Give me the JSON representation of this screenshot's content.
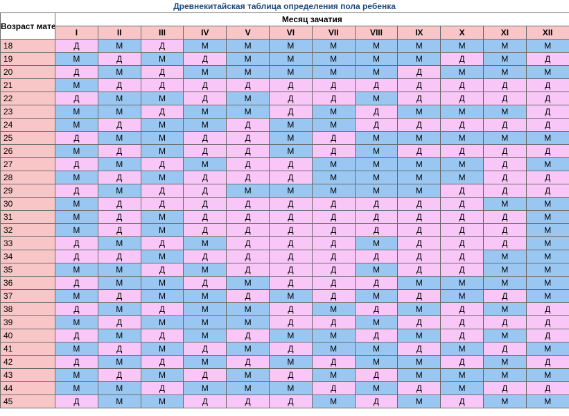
{
  "title": "Древнекитайская таблица определения пола ребенка",
  "age_header": "Возраст матери",
  "month_header": "Месяц зачатия",
  "months": [
    "I",
    "II",
    "III",
    "IV",
    "V",
    "VI",
    "VII",
    "VIII",
    "IX",
    "X",
    "XI",
    "XII"
  ],
  "rows": [
    {
      "age": "18",
      "cells": [
        "Д",
        "М",
        "Д",
        "М",
        "М",
        "М",
        "М",
        "М",
        "М",
        "М",
        "М",
        "М"
      ]
    },
    {
      "age": "19",
      "cells": [
        "М",
        "Д",
        "М",
        "Д",
        "М",
        "М",
        "М",
        "М",
        "М",
        "Д",
        "М",
        "Д"
      ]
    },
    {
      "age": "20",
      "cells": [
        "Д",
        "М",
        "Д",
        "М",
        "М",
        "М",
        "М",
        "М",
        "Д",
        "М",
        "М",
        "М"
      ]
    },
    {
      "age": "21",
      "cells": [
        "М",
        "Д",
        "Д",
        "Д",
        "Д",
        "Д",
        "Д",
        "Д",
        "Д",
        "Д",
        "Д",
        "Д"
      ]
    },
    {
      "age": "22",
      "cells": [
        "Д",
        "М",
        "М",
        "Д",
        "М",
        "Д",
        "Д",
        "М",
        "Д",
        "Д",
        "Д",
        "Д"
      ]
    },
    {
      "age": "23",
      "cells": [
        "М",
        "М",
        "Д",
        "М",
        "М",
        "Д",
        "М",
        "Д",
        "М",
        "М",
        "М",
        "Д"
      ]
    },
    {
      "age": "24",
      "cells": [
        "М",
        "Д",
        "М",
        "М",
        "Д",
        "М",
        "М",
        "Д",
        "Д",
        "Д",
        "Д",
        "Д"
      ]
    },
    {
      "age": "25",
      "cells": [
        "Д",
        "М",
        "М",
        "Д",
        "Д",
        "М",
        "Д",
        "М",
        "М",
        "М",
        "М",
        "М"
      ]
    },
    {
      "age": "26",
      "cells": [
        "М",
        "Д",
        "М",
        "Д",
        "Д",
        "М",
        "Д",
        "М",
        "Д",
        "Д",
        "Д",
        "Д"
      ]
    },
    {
      "age": "27",
      "cells": [
        "Д",
        "М",
        "Д",
        "М",
        "Д",
        "Д",
        "М",
        "М",
        "М",
        "М",
        "Д",
        "М"
      ]
    },
    {
      "age": "28",
      "cells": [
        "М",
        "Д",
        "М",
        "Д",
        "Д",
        "Д",
        "М",
        "М",
        "М",
        "М",
        "Д",
        "Д"
      ]
    },
    {
      "age": "29",
      "cells": [
        "Д",
        "М",
        "Д",
        "Д",
        "М",
        "М",
        "М",
        "М",
        "М",
        "Д",
        "Д",
        "Д"
      ]
    },
    {
      "age": "30",
      "cells": [
        "М",
        "Д",
        "Д",
        "Д",
        "Д",
        "Д",
        "Д",
        "Д",
        "Д",
        "Д",
        "М",
        "М"
      ]
    },
    {
      "age": "31",
      "cells": [
        "М",
        "Д",
        "М",
        "Д",
        "Д",
        "Д",
        "Д",
        "Д",
        "Д",
        "Д",
        "Д",
        "М"
      ]
    },
    {
      "age": "32",
      "cells": [
        "М",
        "Д",
        "М",
        "Д",
        "Д",
        "Д",
        "Д",
        "Д",
        "Д",
        "Д",
        "Д",
        "М"
      ]
    },
    {
      "age": "33",
      "cells": [
        "Д",
        "М",
        "Д",
        "М",
        "Д",
        "Д",
        "Д",
        "М",
        "Д",
        "Д",
        "Д",
        "М"
      ]
    },
    {
      "age": "34",
      "cells": [
        "Д",
        "Д",
        "М",
        "Д",
        "Д",
        "Д",
        "Д",
        "Д",
        "Д",
        "Д",
        "М",
        "М"
      ]
    },
    {
      "age": "35",
      "cells": [
        "М",
        "М",
        "Д",
        "М",
        "Д",
        "Д",
        "Д",
        "М",
        "Д",
        "Д",
        "М",
        "М"
      ]
    },
    {
      "age": "36",
      "cells": [
        "Д",
        "М",
        "М",
        "Д",
        "М",
        "Д",
        "Д",
        "Д",
        "М",
        "М",
        "М",
        "М"
      ]
    },
    {
      "age": "37",
      "cells": [
        "М",
        "Д",
        "М",
        "М",
        "Д",
        "М",
        "Д",
        "М",
        "Д",
        "М",
        "Д",
        "М"
      ]
    },
    {
      "age": "38",
      "cells": [
        "Д",
        "М",
        "Д",
        "М",
        "М",
        "Д",
        "М",
        "Д",
        "М",
        "Д",
        "М",
        "Д"
      ]
    },
    {
      "age": "39",
      "cells": [
        "М",
        "Д",
        "М",
        "М",
        "М",
        "Д",
        "Д",
        "М",
        "Д",
        "Д",
        "Д",
        "Д"
      ]
    },
    {
      "age": "40",
      "cells": [
        "Д",
        "М",
        "Д",
        "М",
        "Д",
        "М",
        "М",
        "Д",
        "М",
        "Д",
        "М",
        "Д"
      ]
    },
    {
      "age": "41",
      "cells": [
        "М",
        "Д",
        "М",
        "Д",
        "М",
        "Д",
        "М",
        "М",
        "Д",
        "М",
        "Д",
        "М"
      ]
    },
    {
      "age": "42",
      "cells": [
        "Д",
        "М",
        "Д",
        "М",
        "Д",
        "М",
        "Д",
        "М",
        "М",
        "Д",
        "М",
        "Д"
      ]
    },
    {
      "age": "43",
      "cells": [
        "М",
        "Д",
        "М",
        "Д",
        "М",
        "Д",
        "М",
        "Д",
        "М",
        "М",
        "М",
        "М"
      ]
    },
    {
      "age": "44",
      "cells": [
        "М",
        "М",
        "Д",
        "М",
        "М",
        "М",
        "Д",
        "М",
        "Д",
        "М",
        "Д",
        "Д"
      ]
    },
    {
      "age": "45",
      "cells": [
        "Д",
        "М",
        "М",
        "Д",
        "Д",
        "Д",
        "М",
        "Д",
        "М",
        "Д",
        "М",
        "М"
      ]
    }
  ],
  "colors": {
    "boy": "#99c7f2",
    "girl": "#f9c6f8",
    "header": "#f8c6c6",
    "title": "#1f497d"
  }
}
